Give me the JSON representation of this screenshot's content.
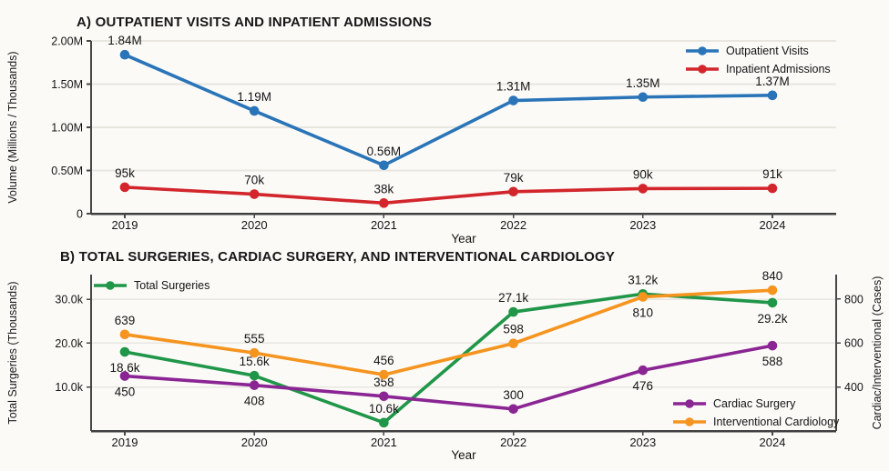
{
  "chart_data": [
    {
      "id": "a",
      "type": "line",
      "title": "A) OUTPATIENT VISITS AND INPATIENT ADMISSIONS",
      "xlabel": "Year",
      "ylabel": "Volume (Millions / Thousands)",
      "categories": [
        "2019",
        "2020",
        "2021",
        "2022",
        "2023",
        "2024"
      ],
      "y_ticks": [
        {
          "label": "2.00M",
          "value": 2.0
        },
        {
          "label": "1.50M",
          "value": 1.5
        },
        {
          "label": "1.00M",
          "value": 1.0
        },
        {
          "label": "0.50M",
          "value": 0.5
        },
        {
          "label": "0",
          "value": 0
        }
      ],
      "y_range_millions": [
        0,
        2.0
      ],
      "grid": true,
      "legend_position": "top-right",
      "series": [
        {
          "name": "Outpatient Visits",
          "color": "#2a74b8",
          "unit": "millions",
          "values": [
            1.84,
            1.19,
            0.56,
            1.31,
            1.35,
            1.37
          ],
          "point_labels": [
            "1.84M",
            "1.19M",
            "0.56M",
            "1.31M",
            "1.35M",
            "1.37M"
          ]
        },
        {
          "name": "Inpatient Admissions",
          "color": "#d2262c",
          "unit": "thousands",
          "values": [
            95,
            70,
            38,
            79,
            90,
            91
          ],
          "point_labels": [
            "95k",
            "70k",
            "38k",
            "79k",
            "90k",
            "91k"
          ]
        }
      ]
    },
    {
      "id": "b",
      "type": "line",
      "title": "B) TOTAL SURGERIES, CARDIAC SURGERY, AND INTERVENTIONAL CARDIOLOGY",
      "xlabel": "Year",
      "ylabel_left": "Total Surgeries (Thousands)",
      "ylabel_right": "Cardiac/Interventional (Cases)",
      "categories": [
        "2019",
        "2020",
        "2021",
        "2022",
        "2023",
        "2024"
      ],
      "y_left_ticks": [
        {
          "label": "30.0k",
          "value": 30
        },
        {
          "label": "20.0k",
          "value": 20
        },
        {
          "label": "10.0k",
          "value": 10
        }
      ],
      "y_right_ticks": [
        {
          "label": "800",
          "value": 800
        },
        {
          "label": "600",
          "value": 600
        },
        {
          "label": "400",
          "value": 400
        }
      ],
      "grid": true,
      "legend_positions": [
        "top-left",
        "bottom-right"
      ],
      "series": [
        {
          "name": "Total Surgeries",
          "axis": "left",
          "color": "#1f9648",
          "values": [
            18.6,
            15.6,
            10.6,
            27.1,
            31.2,
            29.2
          ],
          "point_labels": [
            "18.6k",
            "15.6k",
            "10.6k",
            "27.1k",
            "31.2k",
            "29.2k"
          ]
        },
        {
          "name": "Cardiac Surgery",
          "axis": "right",
          "color": "#8a2593",
          "values": [
            450,
            408,
            358,
            300,
            476,
            588
          ],
          "point_labels": [
            "450",
            "408",
            "358",
            "300",
            "476",
            "588"
          ]
        },
        {
          "name": "Interventional Cardiology",
          "axis": "right",
          "color": "#f5941f",
          "values": [
            639,
            555,
            456,
            598,
            810,
            840
          ],
          "point_labels": [
            "639",
            "555",
            "456",
            "598",
            "810",
            "840"
          ]
        }
      ]
    }
  ]
}
